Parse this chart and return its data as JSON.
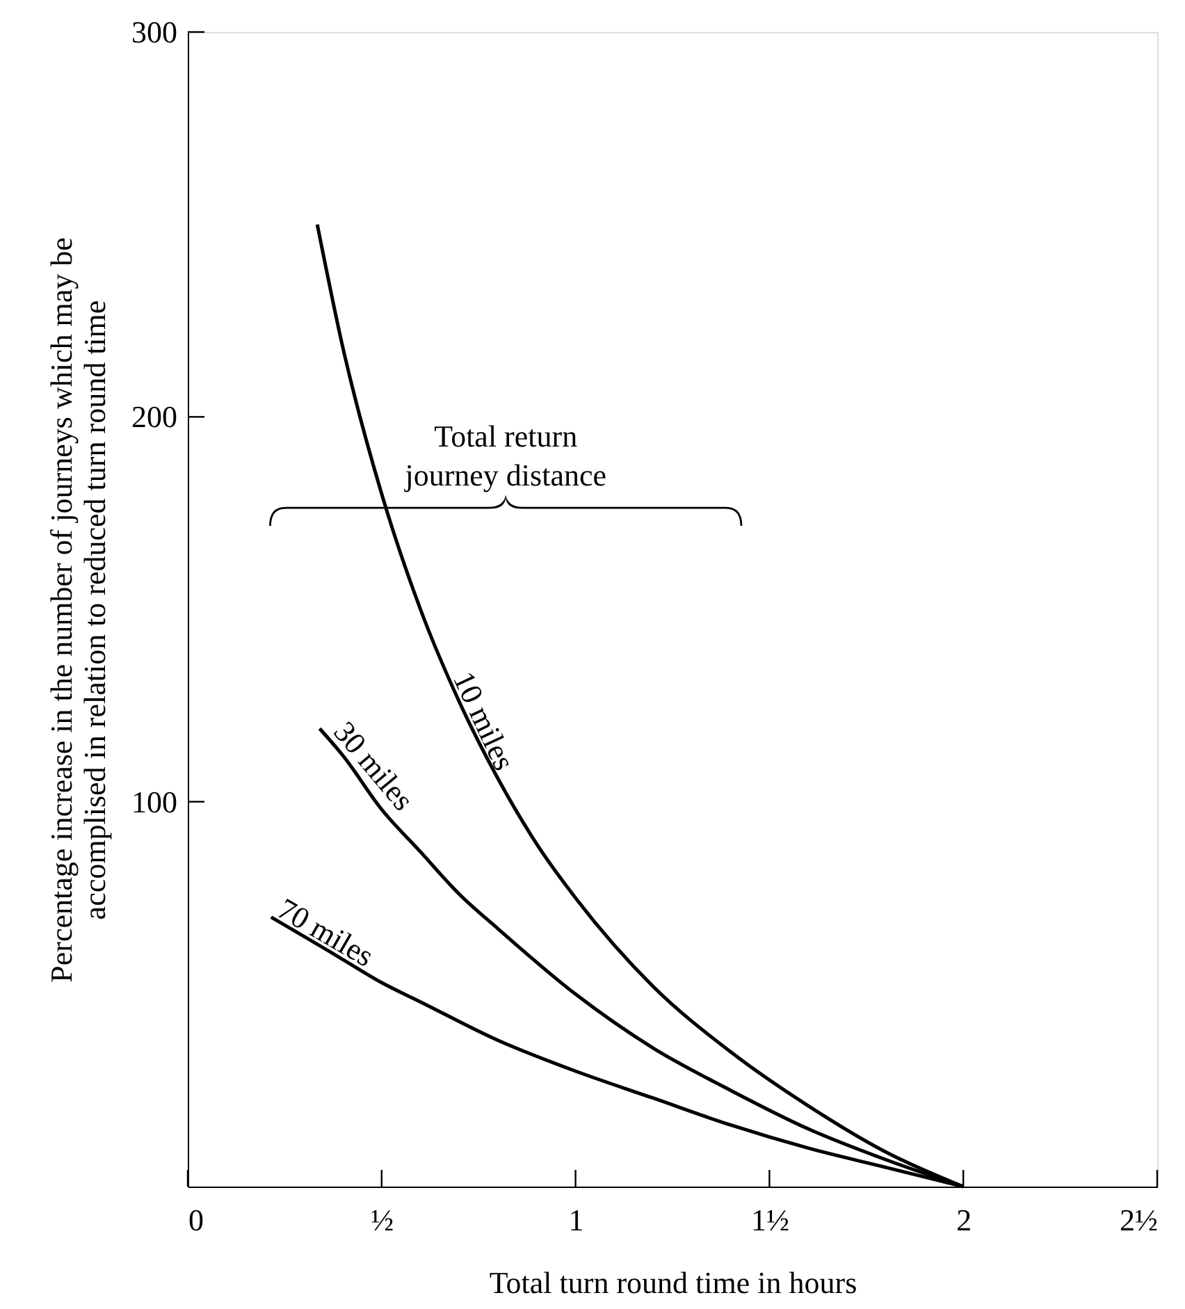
{
  "chart_data": {
    "type": "line",
    "xlabel": "Total turn round time in hours",
    "ylabel": "Percentage increase in the number of journeys which may be\naccomplised in relation to reduced turn round time",
    "xlim": [
      0,
      2.5
    ],
    "ylim": [
      0,
      300
    ],
    "xticks": [
      0,
      {
        "value": 0.5,
        "label": "½"
      },
      1,
      {
        "value": 1.5,
        "label": "1½"
      },
      2,
      {
        "value": 2.5,
        "label": "2½"
      }
    ],
    "yticks": [
      100,
      200,
      300
    ],
    "legend": false,
    "annotations": [
      "Total return\njourney distance"
    ],
    "series": [
      {
        "name": "10 miles",
        "color": "#000000",
        "x": [
          0.334,
          0.4,
          0.5,
          0.6,
          0.7,
          0.8,
          0.9,
          1.0,
          1.2,
          1.4,
          1.6,
          1.8,
          2.0
        ],
        "values": [
          250,
          218,
          180,
          150,
          126,
          106,
          89,
          75,
          52,
          35,
          21,
          9,
          0
        ]
      },
      {
        "name": "30 miles",
        "color": "#000000",
        "x": [
          0.34,
          0.4,
          0.5,
          0.6,
          0.7,
          0.8,
          1.0,
          1.2,
          1.4,
          1.6,
          1.8,
          2.0
        ],
        "values": [
          119,
          112,
          98,
          87,
          76,
          67,
          50,
          36,
          25,
          15,
          7,
          0
        ]
      },
      {
        "name": "70 miles",
        "color": "#000000",
        "x": [
          0.215,
          0.3,
          0.4,
          0.5,
          0.6,
          0.8,
          1.0,
          1.2,
          1.4,
          1.6,
          1.8,
          2.0
        ],
        "values": [
          70,
          65,
          59,
          53,
          48,
          38,
          30,
          23,
          16,
          10,
          5,
          0
        ]
      }
    ]
  }
}
